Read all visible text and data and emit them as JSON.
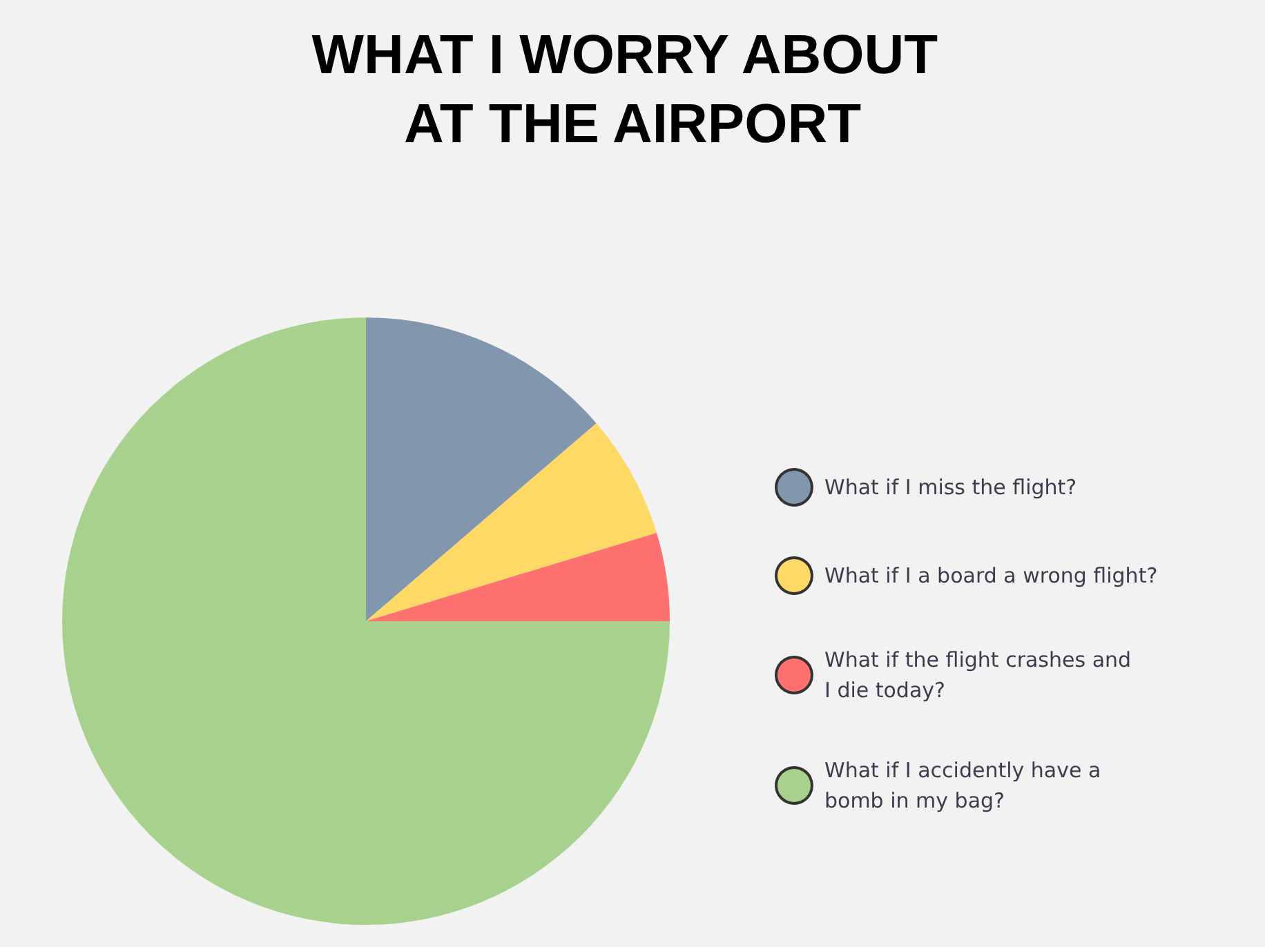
{
  "chart_data": {
    "type": "pie",
    "title": "WHAT I WORRY ABOUT AT THE AIRPORT",
    "categories": [
      "What if I miss the flight?",
      "What if I a board a wrong flight?",
      "What if the flight crashes and\nI die today?",
      "What if I accidently have a\nbomb in my bag?"
    ],
    "values": [
      13.7,
      6.6,
      4.7,
      75
    ],
    "colors": [
      "#8296ae",
      "#ffd966",
      "#ff7070",
      "#a9d18e"
    ],
    "legend": "right"
  }
}
